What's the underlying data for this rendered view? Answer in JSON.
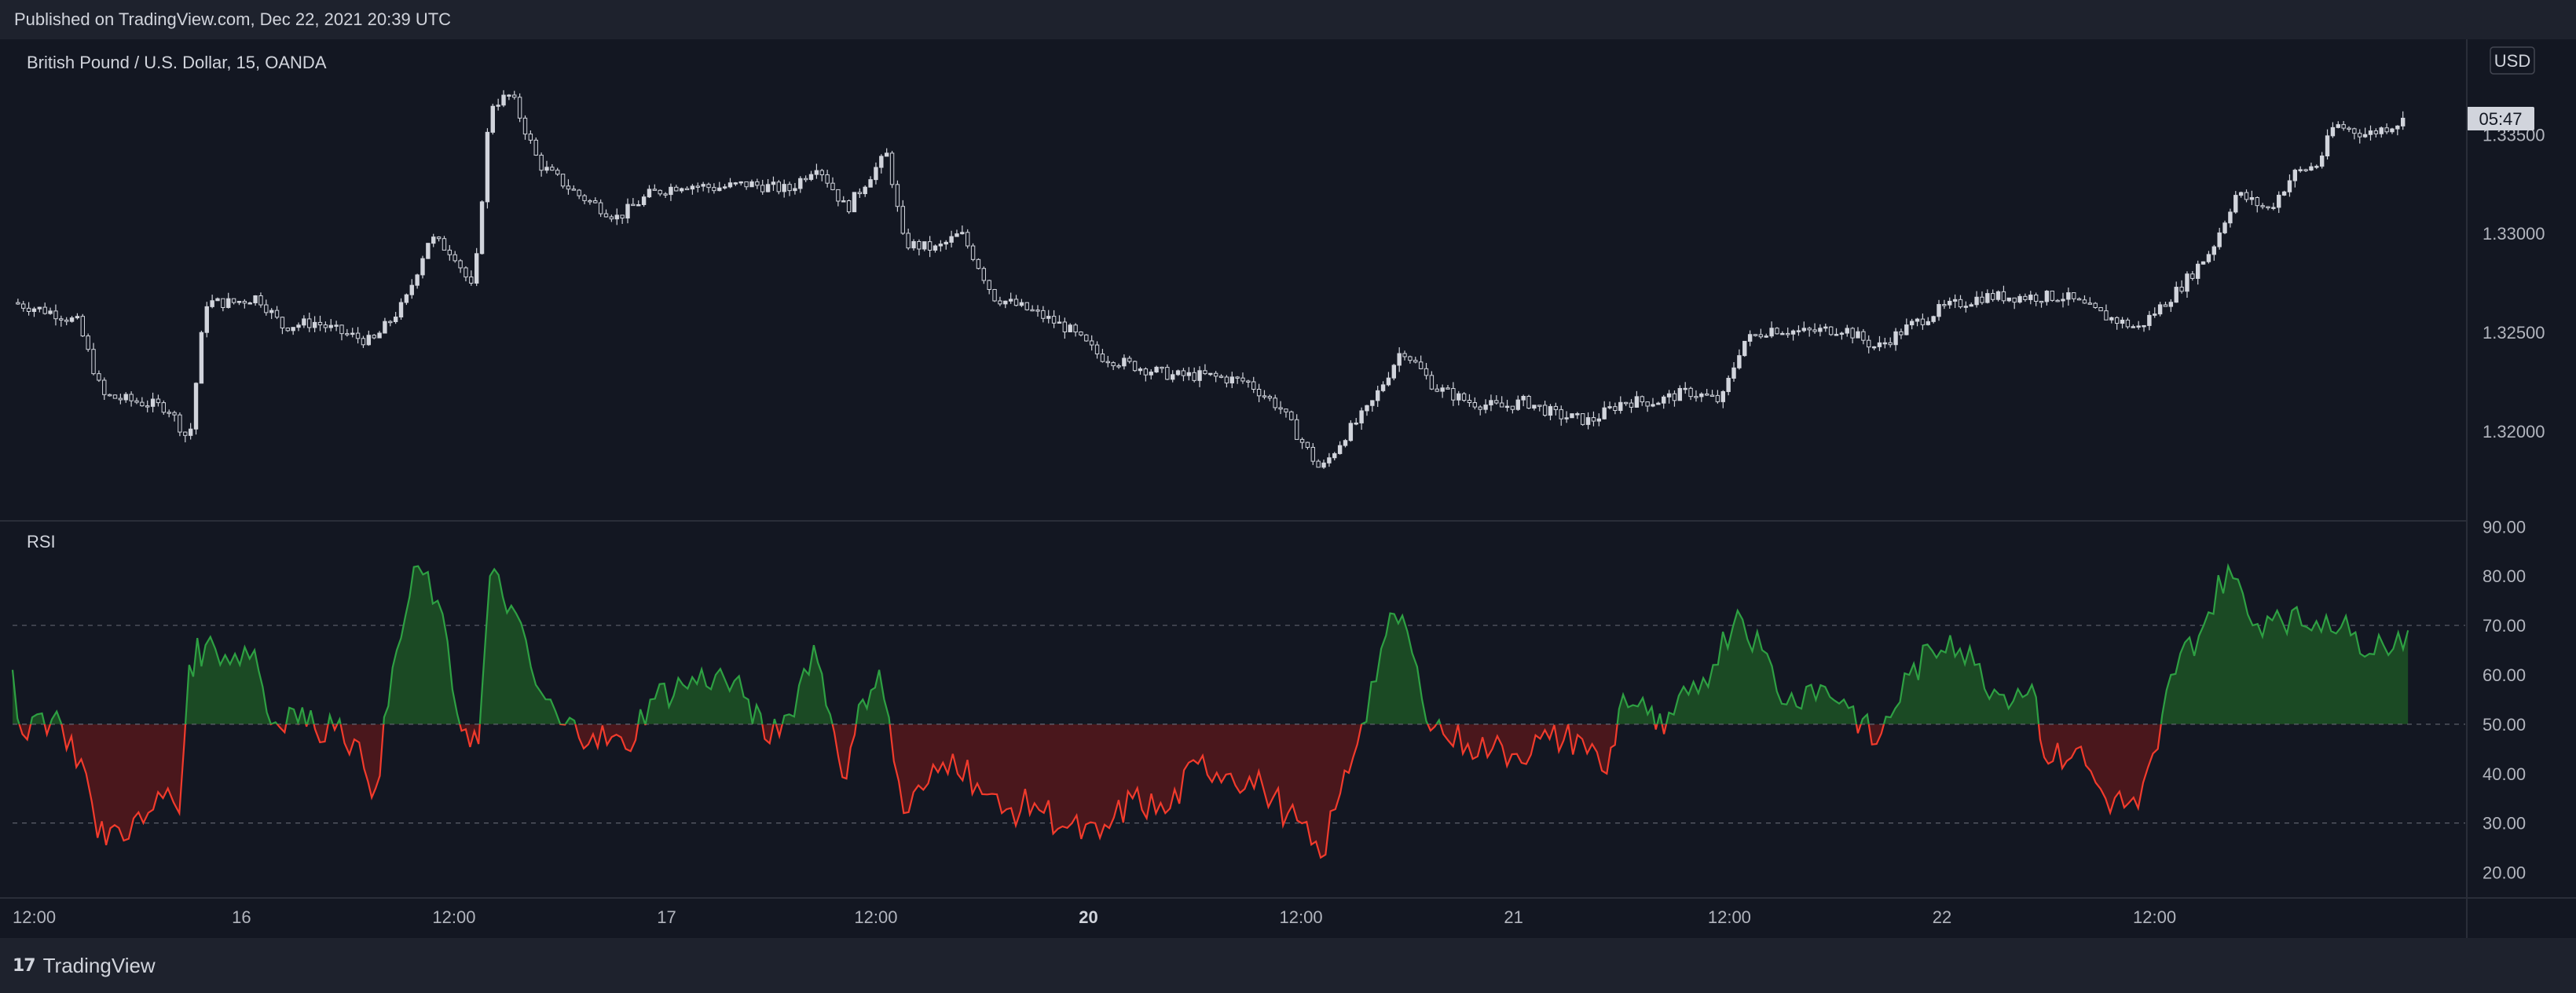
{
  "header": {
    "published": "Published on TradingView.com, Dec 22, 2021 20:39 UTC"
  },
  "footer": {
    "brand": "TradingView",
    "logo_icon": "tradingview-logo-icon"
  },
  "colors": {
    "background": "#131722",
    "frame": "#1e222d",
    "candle": "#d1d4dc",
    "rsi_up": "#2ea043",
    "rsi_down": "#f23b2c",
    "rsi_up_fill": "#1b4a24",
    "rsi_down_fill": "#4a171c",
    "grid_dash": "#5d606b"
  },
  "chart_data": [
    {
      "type": "candlestick",
      "title": "British Pound / U.S. Dollar, 15, OANDA",
      "currency_label": "USD",
      "countdown_label": "05:47",
      "y_ticks": [
        "1.33500",
        "1.33000",
        "1.32500",
        "1.32000"
      ],
      "y_tick_values": [
        1.335,
        1.33,
        1.325,
        1.32
      ],
      "ylim": [
        1.3155,
        1.3395
      ],
      "x_ticks": [
        {
          "label": "12:00",
          "bold": false
        },
        {
          "label": "16",
          "bold": false
        },
        {
          "label": "12:00",
          "bold": false
        },
        {
          "label": "17",
          "bold": false
        },
        {
          "label": "12:00",
          "bold": false
        },
        {
          "label": "20",
          "bold": true
        },
        {
          "label": "12:00",
          "bold": false
        },
        {
          "label": "21",
          "bold": false
        },
        {
          "label": "12:00",
          "bold": false
        },
        {
          "label": "22",
          "bold": false
        },
        {
          "label": "12:00",
          "bold": false
        }
      ],
      "close_path": [
        [
          0,
          1.3265
        ],
        [
          0.025,
          1.326
        ],
        [
          0.04,
          1.3255
        ],
        [
          0.055,
          1.3218
        ],
        [
          0.075,
          1.3215
        ],
        [
          0.095,
          1.3212
        ],
        [
          0.108,
          1.3195
        ],
        [
          0.118,
          1.3265
        ],
        [
          0.135,
          1.3265
        ],
        [
          0.15,
          1.3268
        ],
        [
          0.165,
          1.3253
        ],
        [
          0.185,
          1.3255
        ],
        [
          0.2,
          1.325
        ],
        [
          0.22,
          1.3245
        ],
        [
          0.24,
          1.3265
        ],
        [
          0.255,
          1.3298
        ],
        [
          0.27,
          1.329
        ],
        [
          0.282,
          1.327
        ],
        [
          0.292,
          1.3365
        ],
        [
          0.305,
          1.337
        ],
        [
          0.322,
          1.3335
        ],
        [
          0.345,
          1.332
        ],
        [
          0.37,
          1.3308
        ],
        [
          0.39,
          1.332
        ],
        [
          0.41,
          1.3325
        ],
        [
          0.43,
          1.3323
        ],
        [
          0.45,
          1.3325
        ],
        [
          0.475,
          1.3322
        ],
        [
          0.492,
          1.3335
        ],
        [
          0.51,
          1.3312
        ],
        [
          0.525,
          1.333
        ],
        [
          0.535,
          1.334
        ],
        [
          0.545,
          1.3295
        ],
        [
          0.565,
          1.3292
        ],
        [
          0.58,
          1.33
        ],
        [
          0.59,
          1.3285
        ],
        [
          0.6,
          1.3268
        ],
        [
          0.625,
          1.326
        ],
        [
          0.645,
          1.3252
        ],
        [
          0.665,
          1.3238
        ],
        [
          0.69,
          1.3232
        ],
        [
          0.71,
          1.3228
        ],
        [
          0.73,
          1.3228
        ],
        [
          0.755,
          1.3225
        ],
        [
          0.775,
          1.3212
        ],
        [
          0.8,
          1.318
        ],
        [
          0.815,
          1.3198
        ],
        [
          0.83,
          1.3212
        ],
        [
          0.85,
          1.3242
        ],
        [
          0.87,
          1.3222
        ],
        [
          0.89,
          1.3215
        ],
        [
          0.91,
          1.3212
        ],
        [
          0.925,
          1.3215
        ],
        [
          0.945,
          1.3208
        ],
        [
          0.965,
          1.3205
        ],
        [
          0.985,
          1.3215
        ],
        [
          1.005,
          1.3215
        ],
        [
          1.025,
          1.322
        ],
        [
          1.045,
          1.3215
        ],
        [
          1.058,
          1.3245
        ],
        [
          1.075,
          1.3252
        ],
        [
          1.095,
          1.325
        ],
        [
          1.12,
          1.3252
        ],
        [
          1.14,
          1.3242
        ],
        [
          1.16,
          1.3253
        ],
        [
          1.18,
          1.3262
        ],
        [
          1.205,
          1.3268
        ],
        [
          1.23,
          1.3268
        ],
        [
          1.255,
          1.3268
        ],
        [
          1.28,
          1.3258
        ],
        [
          1.3,
          1.3252
        ],
        [
          1.325,
          1.3272
        ],
        [
          1.345,
          1.3292
        ],
        [
          1.36,
          1.332
        ],
        [
          1.38,
          1.3312
        ],
        [
          1.395,
          1.333
        ],
        [
          1.41,
          1.3335
        ],
        [
          1.42,
          1.3355
        ],
        [
          1.44,
          1.335
        ],
        [
          1.465,
          1.3358
        ]
      ]
    },
    {
      "type": "area",
      "title": "RSI",
      "y_ticks": [
        "90.00",
        "80.00",
        "70.00",
        "60.00",
        "50.00",
        "40.00",
        "30.00",
        "20.00"
      ],
      "y_tick_values": [
        90,
        80,
        70,
        60,
        50,
        40,
        30,
        20
      ],
      "ylim": [
        15,
        91
      ],
      "bands": [
        70,
        50,
        30
      ],
      "midline": 50,
      "rsi": [
        [
          0,
          61
        ],
        [
          0.006,
          48
        ],
        [
          0.015,
          52
        ],
        [
          0.03,
          50
        ],
        [
          0.045,
          40
        ],
        [
          0.052,
          27
        ],
        [
          0.065,
          29
        ],
        [
          0.08,
          30
        ],
        [
          0.095,
          37
        ],
        [
          0.102,
          32
        ],
        [
          0.108,
          62
        ],
        [
          0.118,
          66
        ],
        [
          0.13,
          64
        ],
        [
          0.148,
          65
        ],
        [
          0.158,
          50
        ],
        [
          0.172,
          53
        ],
        [
          0.185,
          49
        ],
        [
          0.2,
          51
        ],
        [
          0.215,
          41
        ],
        [
          0.222,
          37
        ],
        [
          0.235,
          65
        ],
        [
          0.248,
          82
        ],
        [
          0.26,
          75
        ],
        [
          0.272,
          52
        ],
        [
          0.285,
          46
        ],
        [
          0.292,
          80
        ],
        [
          0.305,
          74
        ],
        [
          0.32,
          58
        ],
        [
          0.335,
          50
        ],
        [
          0.355,
          48
        ],
        [
          0.375,
          45
        ],
        [
          0.39,
          55
        ],
        [
          0.41,
          58
        ],
        [
          0.43,
          60
        ],
        [
          0.45,
          55
        ],
        [
          0.46,
          47
        ],
        [
          0.475,
          52
        ],
        [
          0.49,
          66
        ],
        [
          0.5,
          52
        ],
        [
          0.51,
          39
        ],
        [
          0.52,
          55
        ],
        [
          0.53,
          61
        ],
        [
          0.545,
          32
        ],
        [
          0.56,
          38
        ],
        [
          0.575,
          44
        ],
        [
          0.59,
          38
        ],
        [
          0.605,
          32
        ],
        [
          0.625,
          34
        ],
        [
          0.645,
          29
        ],
        [
          0.665,
          27
        ],
        [
          0.685,
          35
        ],
        [
          0.705,
          32
        ],
        [
          0.725,
          42
        ],
        [
          0.745,
          40
        ],
        [
          0.765,
          37
        ],
        [
          0.78,
          32
        ],
        [
          0.8,
          23
        ],
        [
          0.812,
          36
        ],
        [
          0.825,
          50
        ],
        [
          0.84,
          68
        ],
        [
          0.85,
          72
        ],
        [
          0.862,
          55
        ],
        [
          0.875,
          48
        ],
        [
          0.89,
          46
        ],
        [
          0.905,
          45
        ],
        [
          0.92,
          44
        ],
        [
          0.94,
          47
        ],
        [
          0.96,
          47
        ],
        [
          0.975,
          40
        ],
        [
          0.985,
          56
        ],
        [
          1.0,
          52
        ],
        [
          1.01,
          48
        ],
        [
          1.025,
          56
        ],
        [
          1.04,
          62
        ],
        [
          1.055,
          73
        ],
        [
          1.07,
          65
        ],
        [
          1.085,
          54
        ],
        [
          1.1,
          58
        ],
        [
          1.12,
          55
        ],
        [
          1.14,
          46
        ],
        [
          1.16,
          60
        ],
        [
          1.185,
          68
        ],
        [
          1.2,
          62
        ],
        [
          1.215,
          56
        ],
        [
          1.235,
          58
        ],
        [
          1.245,
          42
        ],
        [
          1.262,
          45
        ],
        [
          1.28,
          35
        ],
        [
          1.3,
          33
        ],
        [
          1.312,
          45
        ],
        [
          1.32,
          60
        ],
        [
          1.34,
          70
        ],
        [
          1.355,
          82
        ],
        [
          1.37,
          70
        ],
        [
          1.385,
          73
        ],
        [
          1.4,
          70
        ],
        [
          1.415,
          72
        ],
        [
          1.43,
          68
        ],
        [
          1.45,
          66
        ],
        [
          1.465,
          69
        ]
      ]
    }
  ]
}
